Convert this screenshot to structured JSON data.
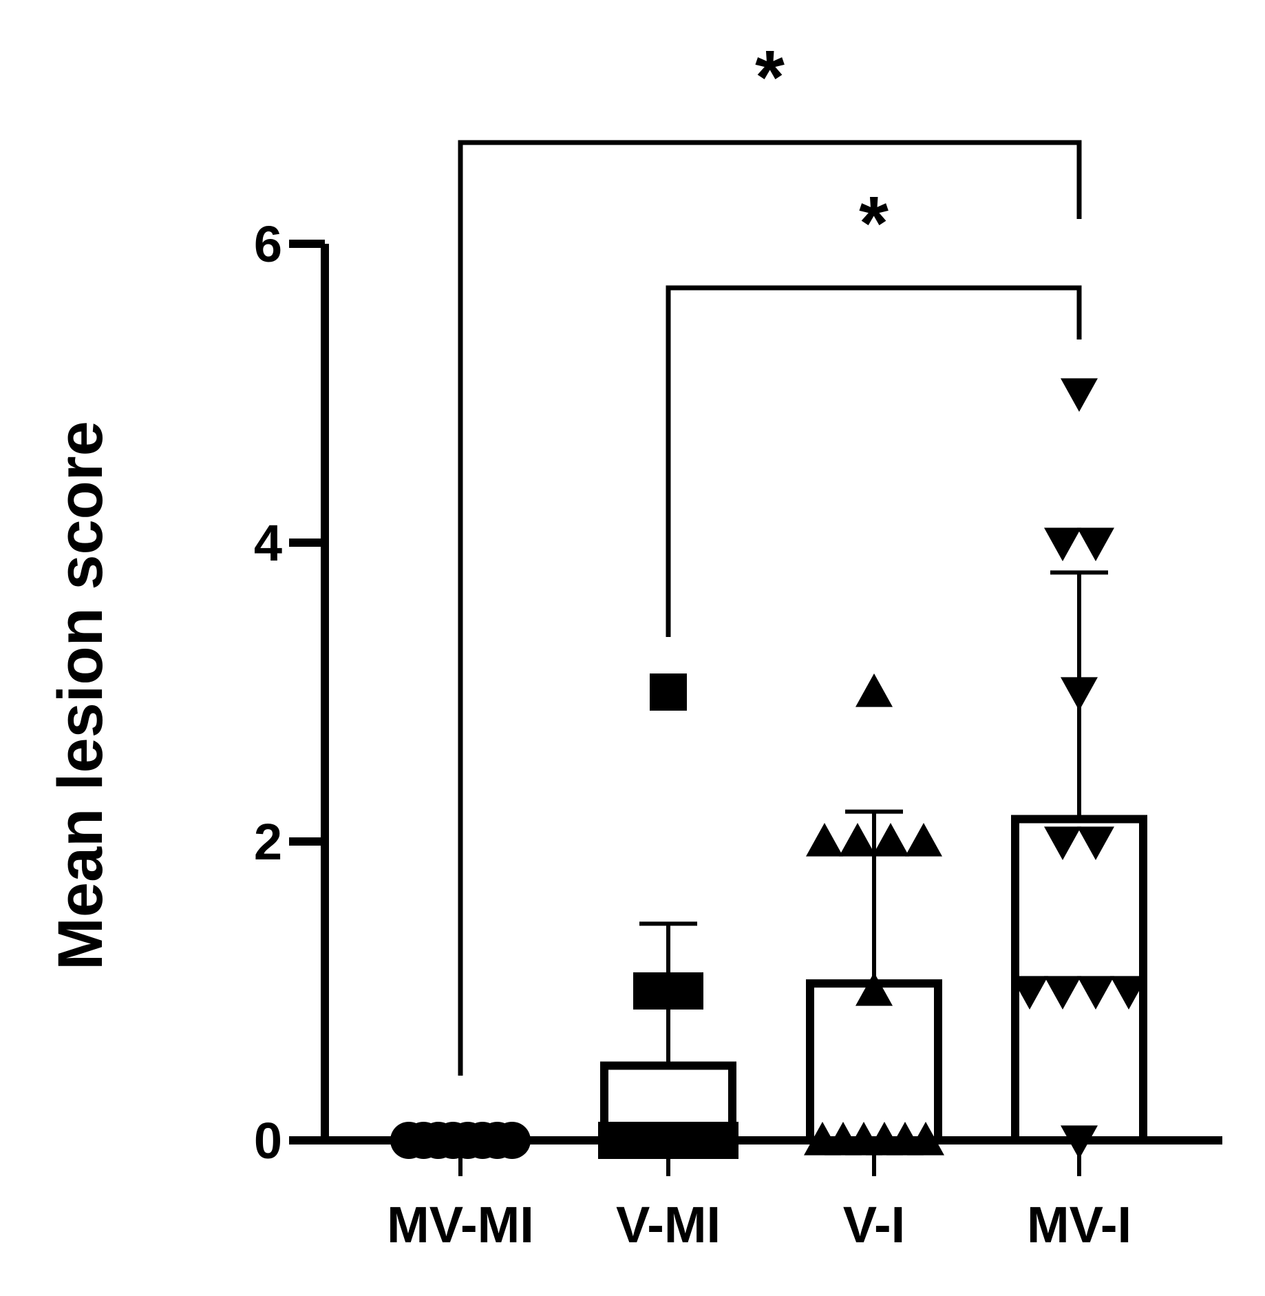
{
  "chart_data": {
    "type": "bar",
    "y_label": "Mean lesion score",
    "categories": [
      "MV-MI",
      "V-MI",
      "V-I",
      "MV-I"
    ],
    "values": [
      0,
      0.5,
      1.05,
      2.15
    ],
    "errors": [
      0,
      0.95,
      1.15,
      1.65
    ],
    "points": [
      [
        0,
        0,
        0,
        0,
        0,
        0,
        0,
        0
      ],
      [
        3,
        1,
        1,
        0,
        0,
        0,
        0,
        0,
        0,
        0
      ],
      [
        3,
        2,
        2,
        2,
        2,
        1,
        0,
        0,
        0,
        0,
        0,
        0
      ],
      [
        5,
        4,
        4,
        3,
        2,
        2,
        1,
        1,
        1,
        1,
        0
      ]
    ],
    "markers": [
      "circle",
      "square",
      "triangle-up",
      "triangle-down"
    ],
    "color": "#000000",
    "ylim": [
      0,
      6
    ],
    "yticks": [
      0,
      2,
      4,
      6
    ],
    "comparisons": [
      {
        "groups": [
          "MV-MI",
          "MV-I"
        ],
        "label": "*"
      },
      {
        "groups": [
          "V-MI",
          "MV-I"
        ],
        "label": "*"
      }
    ]
  }
}
